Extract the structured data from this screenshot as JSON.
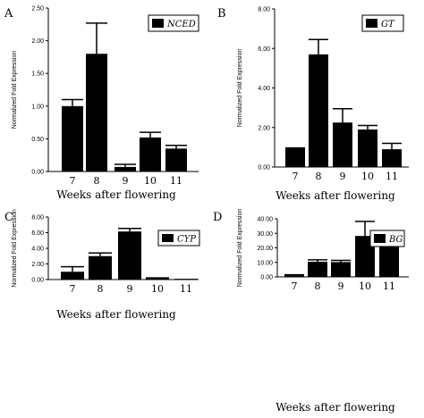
{
  "figure": {
    "xlabel": "Weeks after flowering",
    "ylabel": "Normalized Fold Expression"
  },
  "chart_data": [
    {
      "panel": "A",
      "type": "bar",
      "legend": "NCED",
      "categories": [
        "7",
        "8",
        "9",
        "10",
        "11"
      ],
      "values": [
        1.0,
        1.8,
        0.07,
        0.52,
        0.35
      ],
      "errors": [
        0.1,
        0.47,
        0.04,
        0.08,
        0.05
      ],
      "yticks": [
        "0.00",
        "0.50",
        "1.00",
        "1.50",
        "2.00",
        "2.50"
      ],
      "ylim": [
        0,
        2.5
      ],
      "xlabel": "Weeks after flowering",
      "ylabel": "Normalized Fold Expression",
      "color": "#000000"
    },
    {
      "panel": "B",
      "type": "bar",
      "legend": "GT",
      "categories": [
        "7",
        "8",
        "9",
        "10",
        "11"
      ],
      "values": [
        1.0,
        5.7,
        2.25,
        1.9,
        0.9
      ],
      "errors": [
        0.0,
        0.75,
        0.7,
        0.2,
        0.3
      ],
      "yticks": [
        "0.00",
        "2.00",
        "4.00",
        "6.00",
        "8.00"
      ],
      "ylim": [
        0,
        8
      ],
      "xlabel": "Weeks after flowering",
      "ylabel": "Normalized Fold Expression",
      "color": "#000000"
    },
    {
      "panel": "C",
      "type": "bar",
      "legend": "CYP",
      "categories": [
        "7",
        "8",
        "9",
        "10",
        "11"
      ],
      "values": [
        1.0,
        3.0,
        6.15,
        0.3,
        0.1
      ],
      "errors": [
        0.65,
        0.4,
        0.4,
        0.0,
        0.0
      ],
      "yticks": [
        "0.00",
        "2.00",
        "4.00",
        "6.00",
        "8.00"
      ],
      "ylim": [
        0,
        8
      ],
      "xlabel": "Weeks after flowering",
      "ylabel": "Normalized Fold Expression",
      "color": "#000000"
    },
    {
      "panel": "D",
      "type": "bar",
      "legend": "BG",
      "categories": [
        "7",
        "8",
        "9",
        "10",
        "11"
      ],
      "values": [
        1.0,
        10.4,
        10.2,
        28.2,
        24.8
      ],
      "errors": [
        0.5,
        1.4,
        1.2,
        10.0,
        0.8
      ],
      "yticks": [
        "0.00",
        "10.00",
        "20.00",
        "30.00",
        "40.00"
      ],
      "ylim": [
        0,
        40
      ],
      "xlabel": "Weeks after flowering",
      "ylabel": "Normalized Fold Expression",
      "color": "#000000"
    }
  ]
}
